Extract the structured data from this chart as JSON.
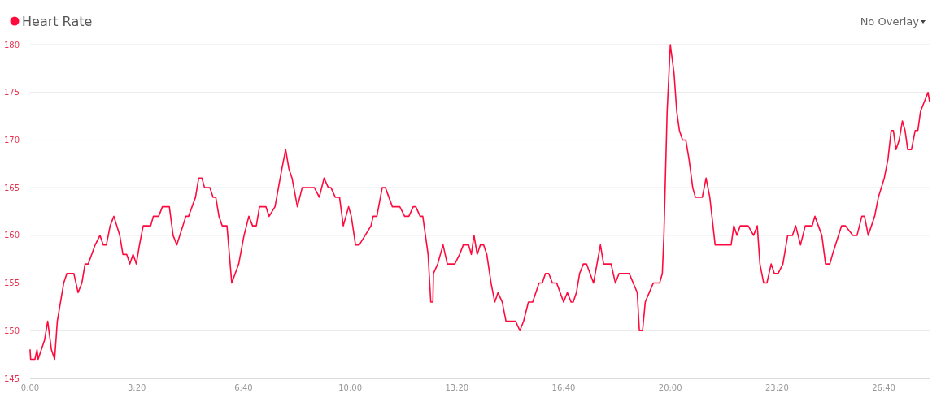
{
  "chart_data": {
    "type": "line",
    "x": [
      0,
      1,
      9,
      13,
      15,
      27,
      33,
      40,
      46,
      51,
      57,
      63,
      69,
      82,
      90,
      97,
      103,
      109,
      122,
      131,
      137,
      143,
      150,
      157,
      168,
      174,
      181,
      187,
      193,
      199,
      205,
      212,
      226,
      231,
      241,
      248,
      261,
      268,
      275,
      292,
      297,
      310,
      316,
      322,
      327,
      337,
      343,
      348,
      354,
      360,
      369,
      378,
      391,
      401,
      410,
      417,
      424,
      430,
      442,
      448,
      459,
      472,
      479,
      485,
      491,
      501,
      510,
      533,
      542,
      551,
      559,
      564,
      572,
      580,
      587,
      597,
      602,
      610,
      617,
      639,
      643,
      650,
      660,
      666,
      679,
      693,
      702,
      710,
      718,
      723,
      731,
      736,
      746,
      751,
      755,
      756,
      764,
      774,
      782,
      796,
      805,
      812,
      822,
      827,
      832,
      838,
      844,
      850,
      856,
      864,
      871,
      877,
      885,
      892,
      910,
      918,
      925,
      934,
      942,
      954,
      960,
      966,
      972,
      979,
      987,
      1000,
      1007,
      1014,
      1018,
      1024,
      1030,
      1037,
      1043,
      1056,
      1069,
      1075,
      1089,
      1097,
      1104,
      1123,
      1138,
      1142,
      1148,
      1153,
      1168,
      1180,
      1185,
      1188,
      1194,
      1200,
      1207,
      1212,
      1217,
      1223,
      1229,
      1235,
      1242,
      1247,
      1260,
      1267,
      1274,
      1284,
      1314,
      1319,
      1325,
      1331,
      1346,
      1356,
      1363,
      1368,
      1375,
      1381,
      1389,
      1395,
      1402,
      1411,
      1420,
      1429,
      1435,
      1444,
      1453,
      1466,
      1471,
      1484,
      1491,
      1499,
      1504,
      1521,
      1528,
      1542,
      1550,
      1559,
      1564,
      1571,
      1583,
      1590,
      1601,
      1608,
      1614,
      1618,
      1623,
      1629,
      1635,
      1640,
      1645,
      1652,
      1659,
      1664,
      1669,
      1683,
      1686
    ],
    "series": [
      {
        "name": "Heart Rate",
        "color": "#ff0a3c",
        "values": [
          148,
          147,
          147,
          148,
          147,
          149,
          151,
          148,
          147,
          151,
          153,
          155,
          156,
          156,
          154,
          155,
          157,
          157,
          159,
          160,
          159,
          159,
          161,
          162,
          160,
          158,
          158,
          157,
          158,
          157,
          159,
          161,
          161,
          162,
          162,
          163,
          163,
          160,
          159,
          162,
          162,
          164,
          166,
          166,
          165,
          165,
          164,
          164,
          162,
          161,
          161,
          155,
          157,
          160,
          162,
          161,
          161,
          163,
          163,
          162,
          163,
          167,
          169,
          167,
          166,
          163,
          165,
          165,
          164,
          166,
          165,
          165,
          164,
          164,
          161,
          163,
          162,
          159,
          159,
          161,
          162,
          162,
          165,
          165,
          163,
          163,
          162,
          162,
          163,
          163,
          162,
          162,
          158,
          153,
          153,
          156,
          157,
          159,
          157,
          157,
          158,
          159,
          159,
          158,
          160,
          158,
          159,
          159,
          158,
          155,
          153,
          154,
          153,
          151,
          151,
          150,
          151,
          153,
          153,
          155,
          155,
          156,
          156,
          155,
          155,
          153,
          154,
          153,
          153,
          154,
          156,
          157,
          157,
          155,
          159,
          157,
          157,
          155,
          156,
          156,
          154,
          150,
          150,
          153,
          155,
          155,
          156,
          160,
          173,
          180,
          177,
          173,
          171,
          170,
          170,
          168,
          165,
          164,
          164,
          166,
          164,
          159,
          159,
          161,
          160,
          161,
          161,
          160,
          161,
          157,
          155,
          155,
          157,
          156,
          156,
          157,
          160,
          160,
          161,
          159,
          161,
          161,
          162,
          160,
          157,
          157,
          158,
          161,
          161,
          160,
          160,
          162,
          162,
          160,
          162,
          164,
          166,
          168,
          171,
          171,
          169,
          170,
          172,
          171,
          169,
          169,
          171,
          171,
          173,
          175,
          174
        ]
      }
    ],
    "xlim": [
      0,
      1686
    ],
    "xticks": [
      {
        "value": 0,
        "label": "0:00"
      },
      {
        "value": 200,
        "label": "3:20"
      },
      {
        "value": 400,
        "label": "6:40"
      },
      {
        "value": 600,
        "label": "10:00"
      },
      {
        "value": 800,
        "label": "13:20"
      },
      {
        "value": 1000,
        "label": "16:40"
      },
      {
        "value": 1200,
        "label": "20:00"
      },
      {
        "value": 1400,
        "label": "23:20"
      },
      {
        "value": 1600,
        "label": "26:40"
      }
    ],
    "ylim": [
      145,
      180
    ],
    "yticks": [
      145,
      150,
      155,
      160,
      165,
      170,
      175,
      180
    ],
    "grid": "y",
    "legend": "top left",
    "marker": "none",
    "line_style": "solid",
    "annotations": [
      "No Overlay"
    ]
  }
}
